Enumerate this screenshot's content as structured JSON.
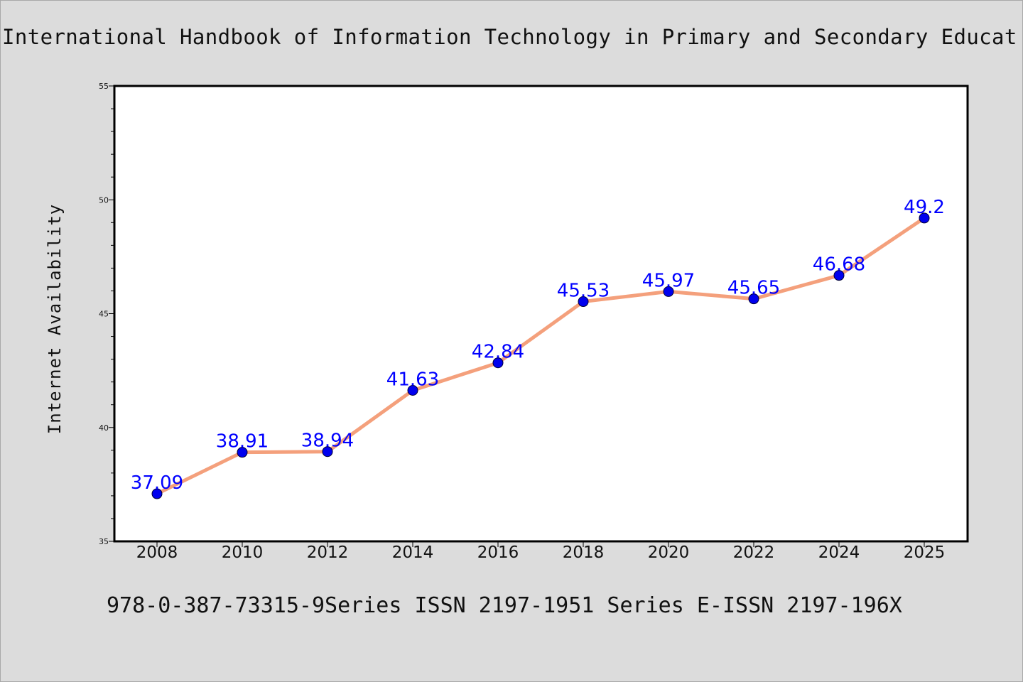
{
  "colors": {
    "background": "#dcdcdc",
    "plot_area": "#ffffff",
    "line": "#f4a07c",
    "marker": "#0000ee",
    "data_label": "#0000ff"
  },
  "chart_data": {
    "type": "line",
    "title": "International Handbook of Information Technology in Primary and Secondary Educat",
    "caption": "978-0-387-73315-9Series ISSN 2197-1951 Series E-ISSN 2197-196X",
    "ylabel": "Internet Availability",
    "xlabel": "",
    "categories": [
      "2008",
      "2010",
      "2012",
      "2014",
      "2016",
      "2018",
      "2020",
      "2022",
      "2024",
      "2025"
    ],
    "series": [
      {
        "values": [
          37.09,
          38.91,
          38.94,
          41.63,
          42.84,
          45.53,
          45.97,
          45.65,
          46.68,
          49.2
        ],
        "labels": [
          "37.09",
          "38.91",
          "38.94",
          "41.63",
          "42.84",
          "45.53",
          "45.97",
          "45.65",
          "46.68",
          "49.2"
        ]
      }
    ],
    "ylim": [
      35,
      55
    ],
    "yticks": [
      "35",
      "40",
      "45",
      "50",
      "55"
    ],
    "grid": false,
    "legend": "none"
  }
}
